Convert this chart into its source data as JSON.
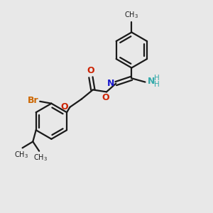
{
  "bg_color": "#e8e8e8",
  "bond_color": "#1a1a1a",
  "bond_width": 1.6,
  "fig_size": [
    3.0,
    3.0
  ],
  "dpi": 100,
  "xlim": [
    0,
    10
  ],
  "ylim": [
    0,
    10
  ]
}
